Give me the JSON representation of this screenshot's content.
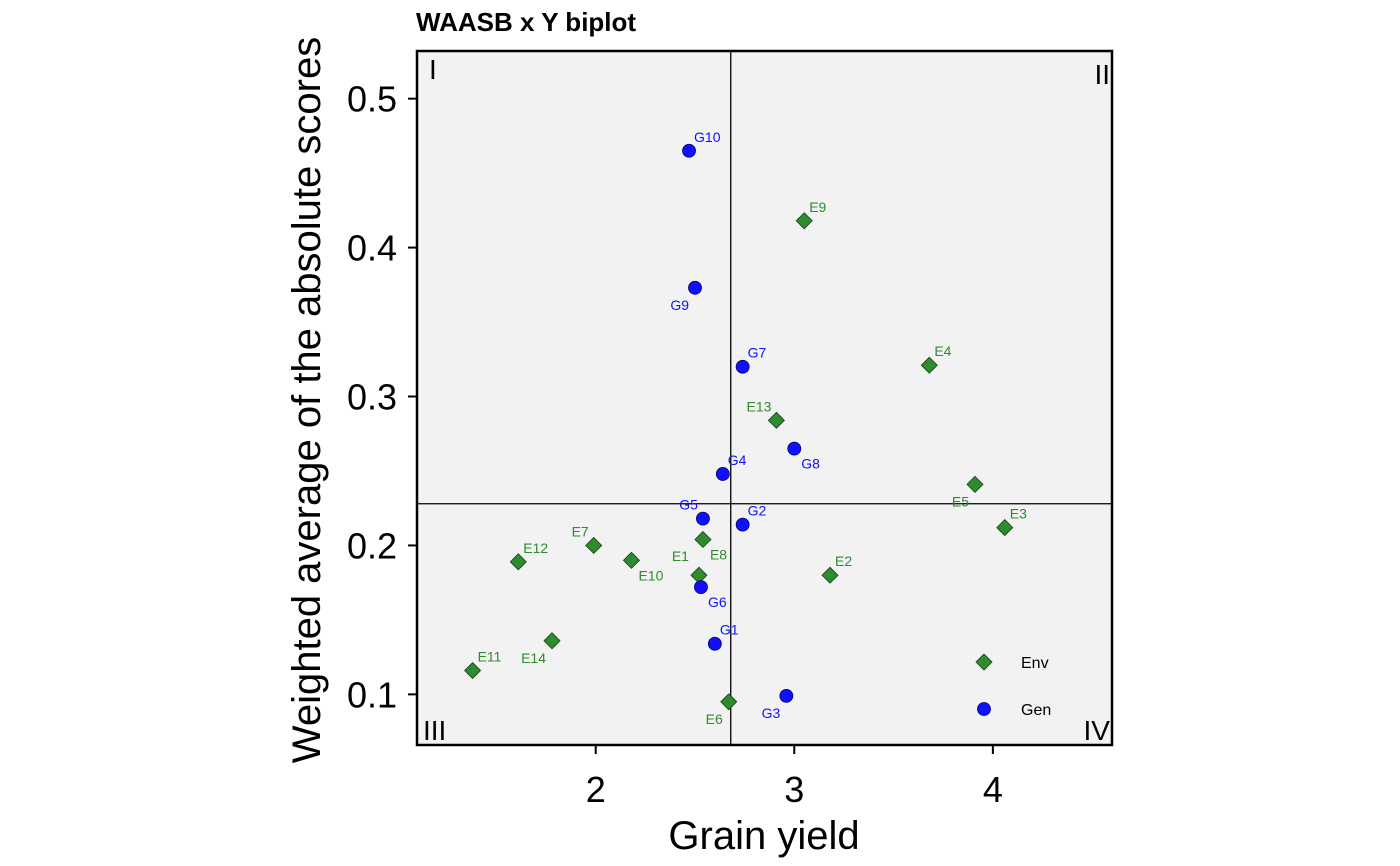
{
  "chart_data": {
    "type": "scatter",
    "title": "WAASB x Y biplot",
    "xlabel": "Grain yield",
    "ylabel": "Weighted average of the absolute scores",
    "xlim": [
      1.1,
      4.6
    ],
    "ylim": [
      0.066,
      0.532
    ],
    "xticks": [
      2,
      3,
      4
    ],
    "yticks": [
      0.1,
      0.2,
      0.3,
      0.4,
      0.5
    ],
    "xtick_labels": [
      "2",
      "3",
      "4"
    ],
    "ytick_labels": [
      "0.1",
      "0.2",
      "0.3",
      "0.4",
      "0.5"
    ],
    "vline_x": 2.68,
    "hline_y": 0.228,
    "quadrant_labels": [
      "I",
      "II",
      "III",
      "IV"
    ],
    "grid": false,
    "legend_position": "bottom-right",
    "colors": {
      "Env": "#2e8b2e",
      "Gen": "#1010ff",
      "panel_bg": "#f2f2f2"
    },
    "series": [
      {
        "name": "Env",
        "marker": "diamond",
        "points": [
          {
            "label": "E1",
            "x": 2.52,
            "y": 0.18,
            "lpos": "left"
          },
          {
            "label": "E2",
            "x": 3.18,
            "y": 0.18,
            "lpos": "topright"
          },
          {
            "label": "E3",
            "x": 4.06,
            "y": 0.212,
            "lpos": "topright"
          },
          {
            "label": "E4",
            "x": 3.68,
            "y": 0.321,
            "lpos": "topright"
          },
          {
            "label": "E5",
            "x": 3.91,
            "y": 0.241,
            "lpos": "bottomleft"
          },
          {
            "label": "E6",
            "x": 2.67,
            "y": 0.095,
            "lpos": "bottomleft"
          },
          {
            "label": "E7",
            "x": 1.99,
            "y": 0.2,
            "lpos": "topleft"
          },
          {
            "label": "E8",
            "x": 2.54,
            "y": 0.204,
            "lpos": "bottomright"
          },
          {
            "label": "E9",
            "x": 3.05,
            "y": 0.418,
            "lpos": "topright"
          },
          {
            "label": "E10",
            "x": 2.18,
            "y": 0.19,
            "lpos": "bottomright"
          },
          {
            "label": "E11",
            "x": 1.38,
            "y": 0.116,
            "lpos": "topright"
          },
          {
            "label": "E12",
            "x": 1.61,
            "y": 0.189,
            "lpos": "topright"
          },
          {
            "label": "E13",
            "x": 2.91,
            "y": 0.284,
            "lpos": "topleft"
          },
          {
            "label": "E14",
            "x": 1.78,
            "y": 0.136,
            "lpos": "bottomleft"
          }
        ]
      },
      {
        "name": "Gen",
        "marker": "circle",
        "points": [
          {
            "label": "G1",
            "x": 2.6,
            "y": 0.134,
            "lpos": "topright"
          },
          {
            "label": "G2",
            "x": 2.74,
            "y": 0.214,
            "lpos": "topright"
          },
          {
            "label": "G3",
            "x": 2.96,
            "y": 0.099,
            "lpos": "bottomleft"
          },
          {
            "label": "G4",
            "x": 2.64,
            "y": 0.248,
            "lpos": "topright"
          },
          {
            "label": "G5",
            "x": 2.54,
            "y": 0.218,
            "lpos": "topleft"
          },
          {
            "label": "G6",
            "x": 2.53,
            "y": 0.172,
            "lpos": "bottomright"
          },
          {
            "label": "G7",
            "x": 2.74,
            "y": 0.32,
            "lpos": "topright"
          },
          {
            "label": "G8",
            "x": 3.0,
            "y": 0.265,
            "lpos": "bottomright"
          },
          {
            "label": "G9",
            "x": 2.5,
            "y": 0.373,
            "lpos": "bottomleft"
          },
          {
            "label": "G10",
            "x": 2.47,
            "y": 0.465,
            "lpos": "topright"
          }
        ]
      }
    ]
  }
}
